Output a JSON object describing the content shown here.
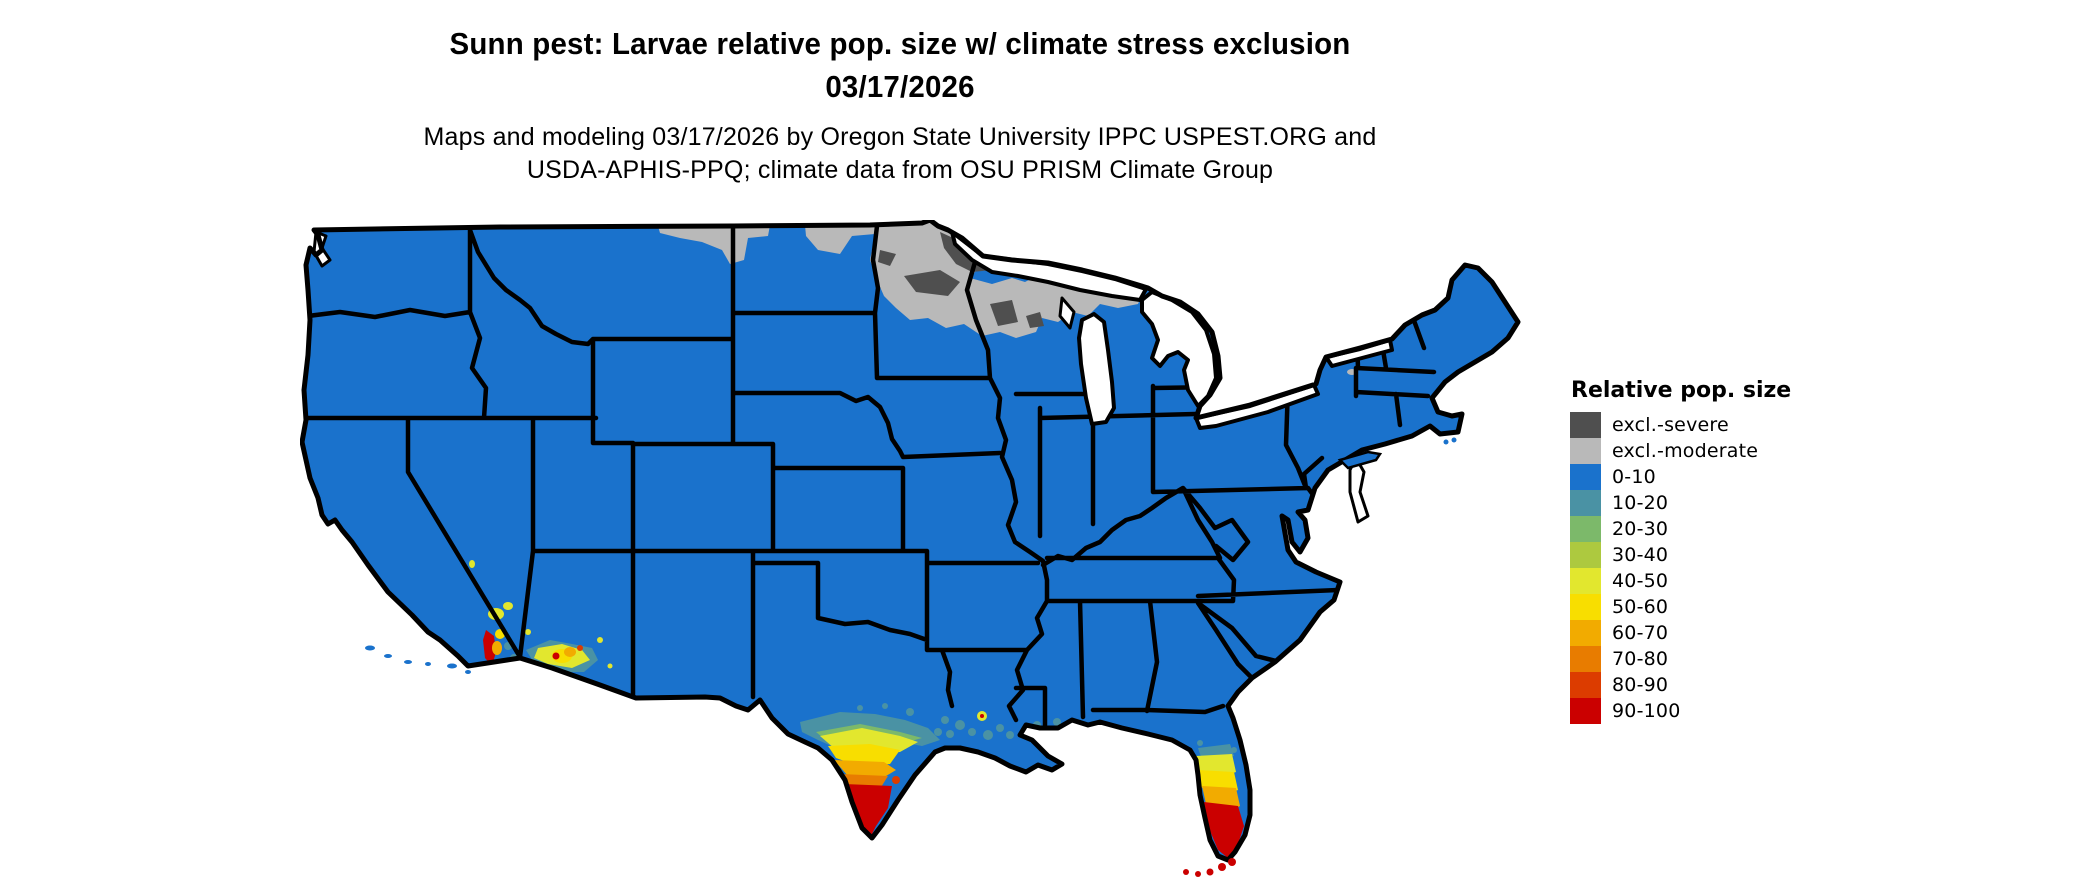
{
  "header": {
    "title_line1": "Sunn pest: Larvae relative pop. size w/ climate stress exclusion",
    "title_line2": "03/17/2026",
    "subtitle_line1": "Maps and modeling 03/17/2026 by Oregon State University IPPC USPEST.ORG and",
    "subtitle_line2": "USDA-APHIS-PPQ; climate data from OSU PRISM Climate Group"
  },
  "legend": {
    "title": "Relative pop. size",
    "items": [
      {
        "label": "excl.-severe",
        "color": "#4f4f4f"
      },
      {
        "label": "excl.-moderate",
        "color": "#b9b9b9"
      },
      {
        "label": "0-10",
        "color": "#1a72cc"
      },
      {
        "label": "10-20",
        "color": "#4a92a4"
      },
      {
        "label": "20-30",
        "color": "#7cb96a"
      },
      {
        "label": "30-40",
        "color": "#adc93f"
      },
      {
        "label": "40-50",
        "color": "#e2e72e"
      },
      {
        "label": "50-60",
        "color": "#f8de00"
      },
      {
        "label": "60-70",
        "color": "#f2ab00"
      },
      {
        "label": "70-80",
        "color": "#e87c00"
      },
      {
        "label": "80-90",
        "color": "#dc3c00"
      },
      {
        "label": "90-100",
        "color": "#cb0000"
      }
    ]
  },
  "map": {
    "region": "Conterminous United States",
    "base_category": "0-10",
    "exclusion_moderate_areas": "northern Montana and North Dakota border strip, most of Minnesota, northern Wisconsin, western Upper Michigan, small Adirondack patches in New York",
    "exclusion_severe_areas": "northeastern Minnesota arrowhead and patches in northern Wisconsin",
    "high_population_areas": "southern Texas (Rio Grande Valley up to 90-100), central and southern Florida (up to 90-100, including the Keys), southern California coast and southwestern Arizona hot spots, coastal Louisiana 10-20"
  }
}
